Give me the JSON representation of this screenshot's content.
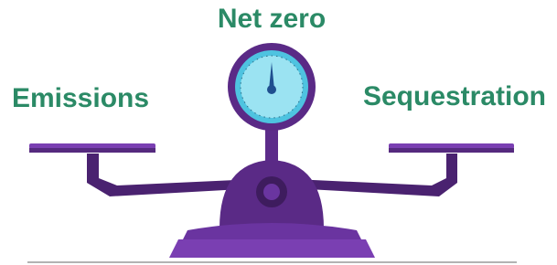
{
  "labels": {
    "center": "Net zero",
    "left": "Emissions",
    "right": "Sequestration"
  }
}
